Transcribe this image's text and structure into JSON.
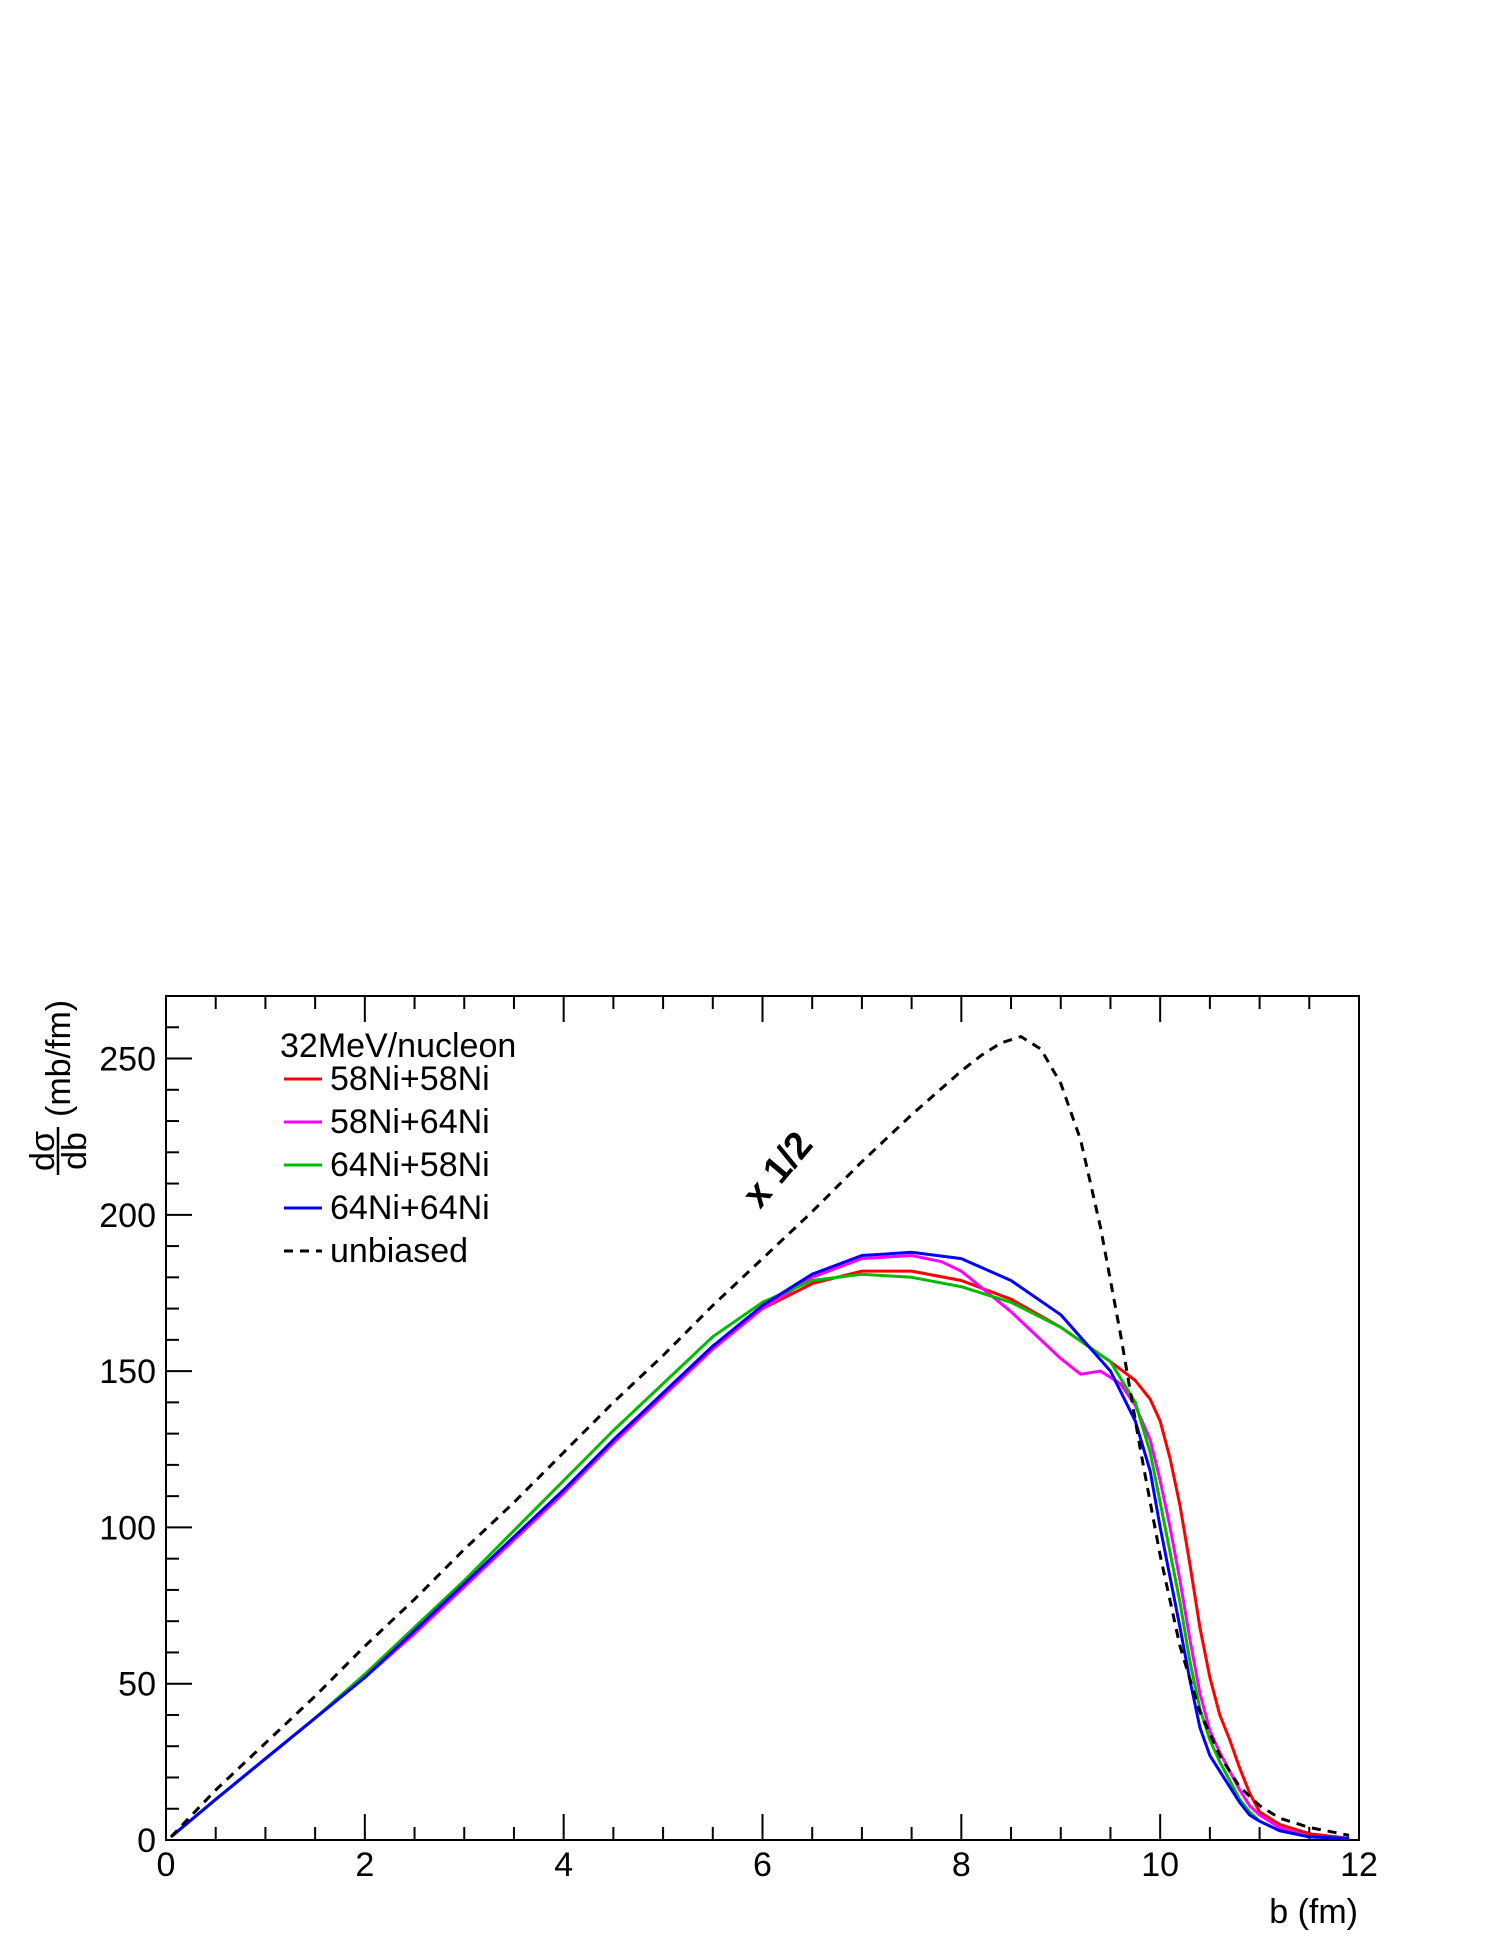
{
  "chart_data": {
    "type": "line",
    "title": "",
    "xlabel": "b (fm)",
    "ylabel": {
      "numerator": "dσ",
      "denominator": "db",
      "unit": "(mb/fm)"
    },
    "xlim": [
      0,
      12
    ],
    "ylim": [
      0,
      270
    ],
    "x_ticks": [
      0,
      2,
      4,
      6,
      8,
      10,
      12
    ],
    "y_ticks": [
      0,
      50,
      100,
      150,
      200,
      250
    ],
    "grid": false,
    "legend_position": "top-left",
    "legend_title": "32MeV/nucleon",
    "annotation": {
      "text": "x 1/2",
      "x": 6.3,
      "y": 212,
      "rotation_deg": -50
    },
    "series": [
      {
        "name": "58Ni+58Ni",
        "color": "#ff0000",
        "dash": "solid",
        "x": [
          0.05,
          0.5,
          1,
          1.5,
          2,
          2.5,
          3,
          3.5,
          4,
          4.5,
          5,
          5.5,
          6,
          6.5,
          7,
          7.5,
          8,
          8.5,
          9,
          9.5,
          9.75,
          9.9,
          10,
          10.1,
          10.2,
          10.3,
          10.4,
          10.5,
          10.6,
          10.7,
          10.8,
          10.9,
          11,
          11.2,
          11.5,
          11.9
        ],
        "y": [
          1,
          13,
          26,
          39,
          52,
          67,
          82,
          97,
          112,
          128,
          143,
          158,
          170,
          178,
          182,
          182,
          179,
          173,
          164,
          153,
          147,
          141,
          134,
          122,
          107,
          88,
          68,
          52,
          40,
          32,
          23,
          15,
          9,
          5,
          2,
          0.5
        ]
      },
      {
        "name": "58Ni+64Ni",
        "color": "#ff00ff",
        "dash": "solid",
        "x": [
          0.05,
          0.5,
          1,
          1.5,
          2,
          2.5,
          3,
          3.5,
          4,
          4.5,
          5,
          5.5,
          6,
          6.5,
          7,
          7.5,
          7.8,
          8,
          8.5,
          9,
          9.2,
          9.4,
          9.6,
          9.75,
          9.9,
          10,
          10.1,
          10.2,
          10.3,
          10.4,
          10.5,
          10.6,
          10.7,
          10.8,
          10.9,
          11,
          11.2,
          11.5,
          11.9
        ],
        "y": [
          1,
          13,
          26,
          39,
          52,
          66,
          81,
          96,
          111,
          127,
          142,
          157,
          170,
          180,
          186,
          187,
          185,
          182,
          169,
          154,
          149,
          150,
          146,
          139,
          128,
          115,
          100,
          83,
          64,
          47,
          35,
          28,
          22,
          16,
          11,
          8,
          4,
          1,
          0.5
        ]
      },
      {
        "name": "64Ni+58Ni",
        "color": "#00bb00",
        "dash": "solid",
        "x": [
          0.05,
          0.5,
          1,
          1.5,
          2,
          2.5,
          3,
          3.5,
          4,
          4.5,
          5,
          5.5,
          6,
          6.5,
          7,
          7.5,
          8,
          8.5,
          9,
          9.5,
          9.75,
          9.9,
          10,
          10.1,
          10.2,
          10.3,
          10.4,
          10.5,
          10.6,
          10.7,
          10.8,
          10.9,
          11,
          11.2,
          11.5,
          11.9
        ],
        "y": [
          1,
          13,
          26,
          39,
          53,
          68,
          83,
          99,
          115,
          131,
          146,
          161,
          172,
          179,
          181,
          180,
          177,
          172,
          164,
          153,
          140,
          124,
          108,
          92,
          76,
          57,
          42,
          32,
          25,
          19,
          13,
          9,
          6,
          3,
          1,
          0.5
        ]
      },
      {
        "name": "64Ni+64Ni",
        "color": "#0000ff",
        "dash": "solid",
        "x": [
          0.05,
          0.5,
          1,
          1.5,
          2,
          2.5,
          3,
          3.5,
          4,
          4.5,
          5,
          5.5,
          6,
          6.5,
          7,
          7.5,
          8,
          8.5,
          9,
          9.5,
          9.75,
          9.9,
          10,
          10.1,
          10.2,
          10.3,
          10.4,
          10.5,
          10.6,
          10.7,
          10.8,
          10.9,
          11,
          11.2,
          11.5,
          11.9
        ],
        "y": [
          1,
          13,
          26,
          39,
          52,
          67,
          82,
          97,
          112,
          128,
          143,
          158,
          171,
          181,
          187,
          188,
          186,
          179,
          168,
          150,
          134,
          118,
          100,
          84,
          68,
          51,
          36,
          27,
          22,
          17,
          12,
          8,
          6,
          3,
          1,
          0.5
        ]
      },
      {
        "name": "unbiased",
        "color": "#000000",
        "dash": "dashed",
        "x": [
          0.05,
          0.5,
          1,
          1.5,
          2,
          2.5,
          3,
          3.5,
          4,
          4.5,
          5,
          5.5,
          6,
          6.5,
          7,
          7.5,
          8,
          8.2,
          8.4,
          8.6,
          8.8,
          9,
          9.2,
          9.4,
          9.6,
          9.8,
          10,
          10.2,
          10.4,
          10.6,
          10.8,
          11,
          11.2,
          11.5,
          11.9
        ],
        "y": [
          1,
          16,
          31,
          46,
          62,
          77,
          93,
          108,
          124,
          140,
          155,
          171,
          186,
          201,
          217,
          232,
          246,
          251,
          255,
          257,
          253,
          242,
          224,
          196,
          162,
          125,
          91,
          62,
          41,
          27,
          17,
          11,
          7,
          4,
          1.5
        ]
      }
    ]
  }
}
